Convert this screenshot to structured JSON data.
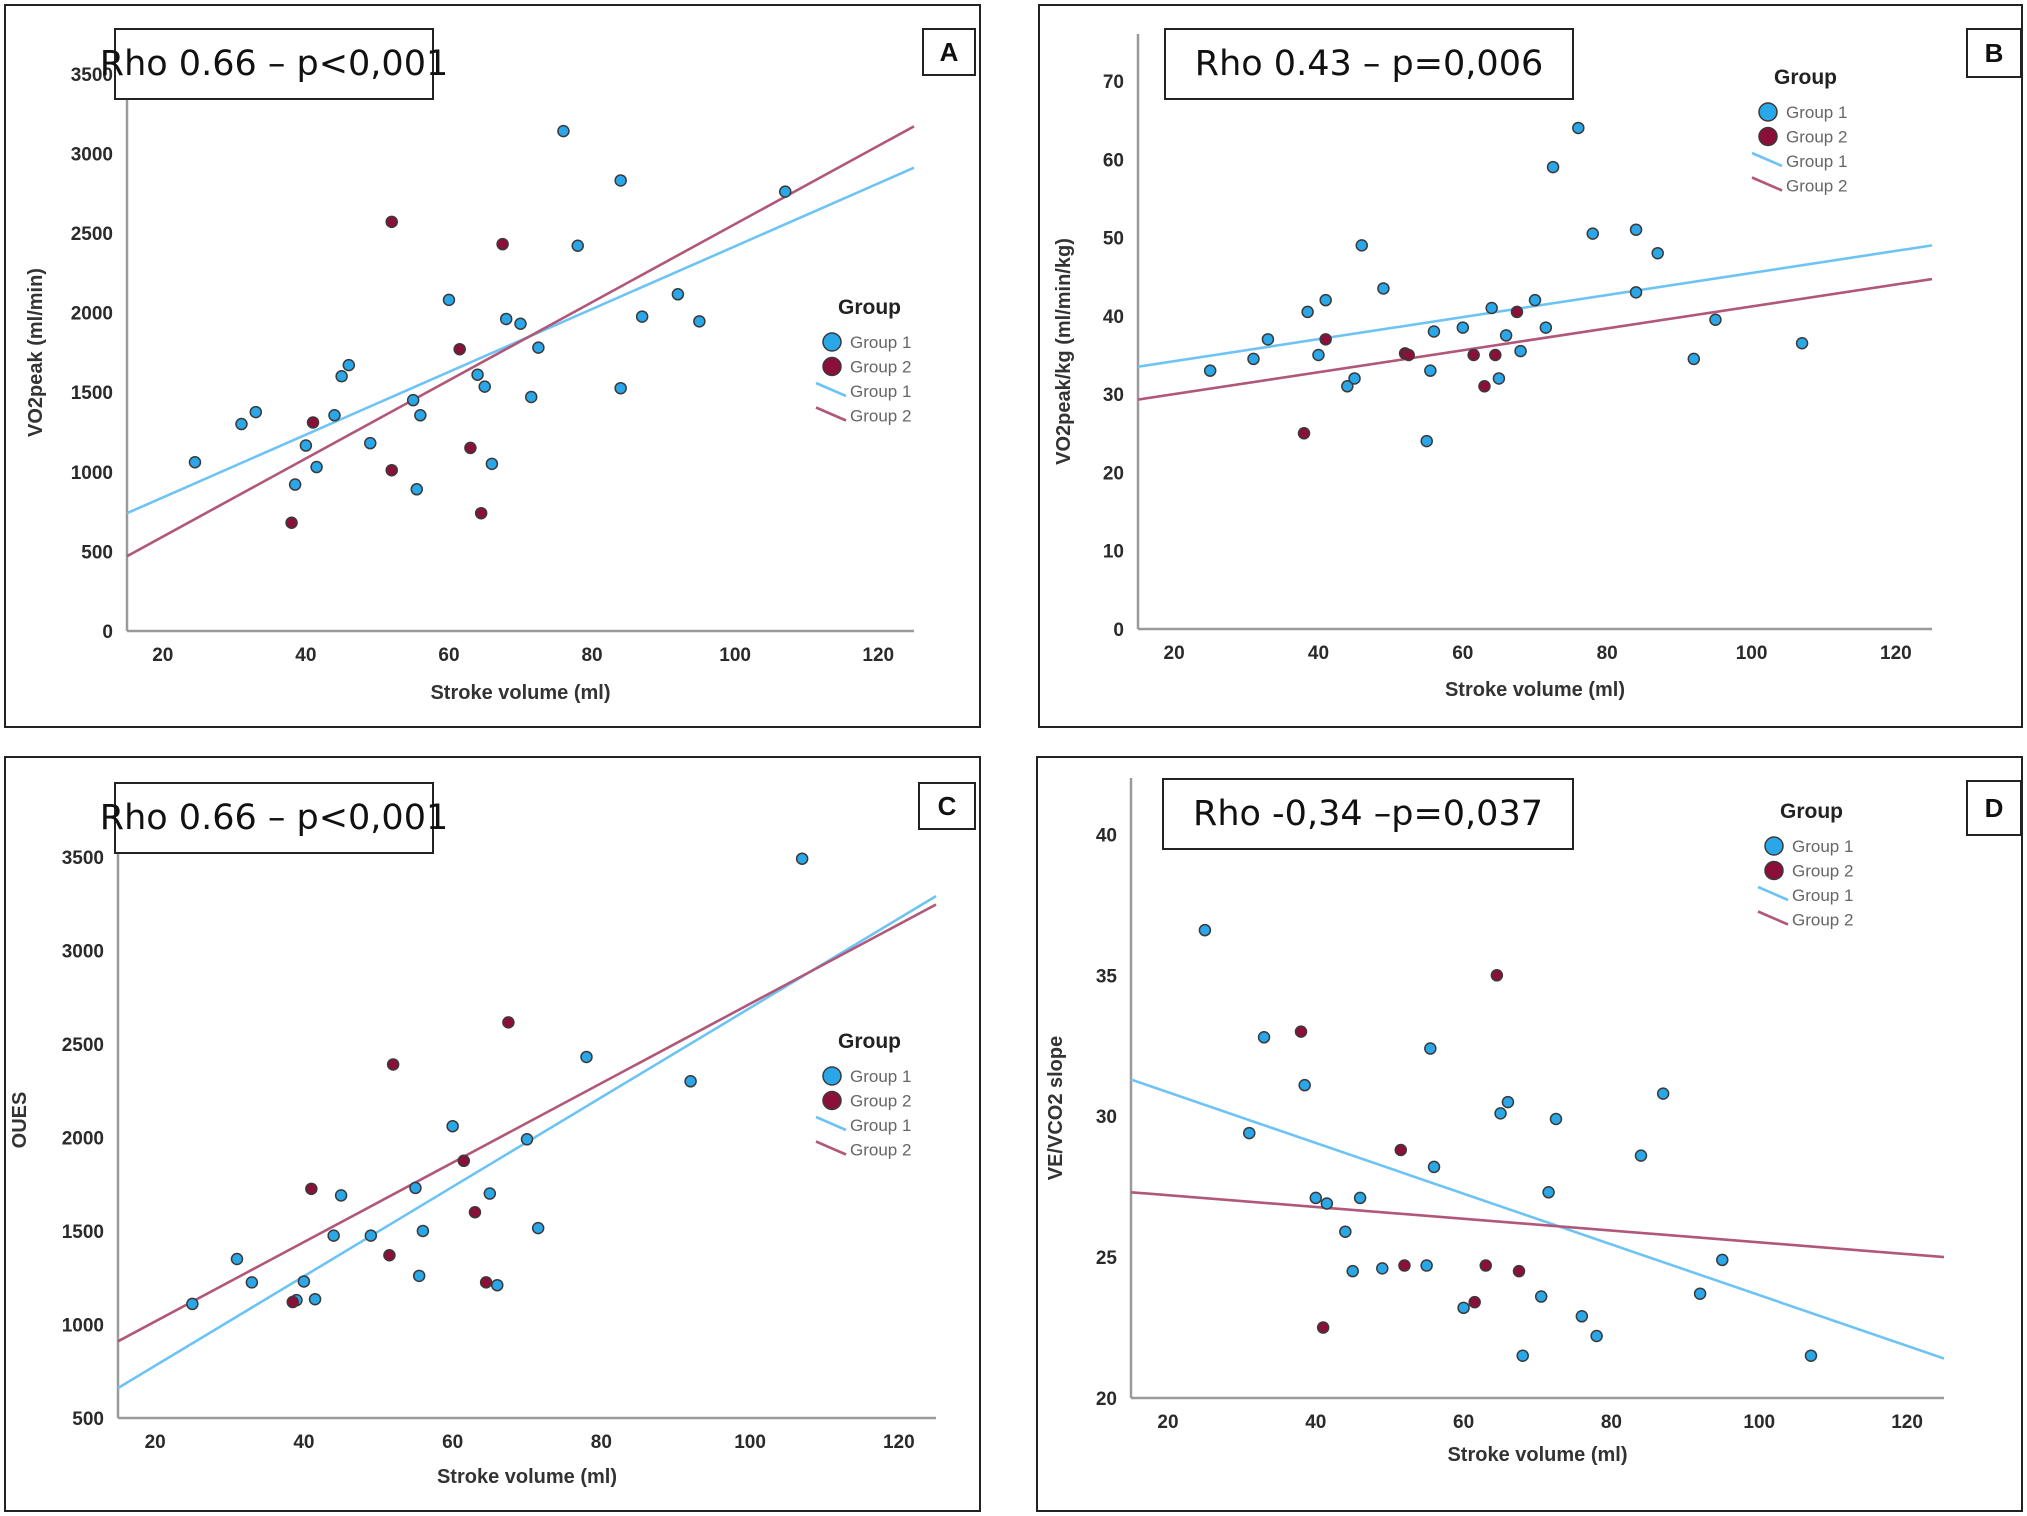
{
  "colors": {
    "group1_point": "#2aa7e8",
    "group2_point": "#8c0f3a",
    "group1_line": "#6ec3f5",
    "group2_line": "#b0577a",
    "axis": "#9a9a9a"
  },
  "chart_data": [
    {
      "id": "A",
      "type": "scatter",
      "panel_letter": "A",
      "annotation": "Rho 0.66 – p<0,001",
      "xlabel": "Stroke volume (ml)",
      "ylabel": "VO2peak (ml/min)",
      "xlim": [
        15,
        125
      ],
      "ylim": [
        0,
        3750
      ],
      "xticks": [
        20,
        40,
        60,
        80,
        100,
        120
      ],
      "yticks": [
        0,
        500,
        1000,
        1500,
        2000,
        2500,
        3000,
        3500
      ],
      "grid": false,
      "legend": {
        "title": "Group",
        "position": "right",
        "entries": [
          "Group 1",
          "Group 2",
          "Group 1",
          "Group 2"
        ]
      },
      "series": [
        {
          "name": "Group 1",
          "points": [
            [
              24.5,
              1060
            ],
            [
              31,
              1300
            ],
            [
              33,
              1375
            ],
            [
              38.5,
              920
            ],
            [
              40,
              1165
            ],
            [
              41.5,
              1030
            ],
            [
              44,
              1355
            ],
            [
              45,
              1600
            ],
            [
              46,
              1670
            ],
            [
              49,
              1180
            ],
            [
              55,
              1450
            ],
            [
              55.5,
              890
            ],
            [
              56,
              1355
            ],
            [
              60,
              2080
            ],
            [
              64,
              1610
            ],
            [
              65,
              1535
            ],
            [
              66,
              1050
            ],
            [
              68,
              1960
            ],
            [
              70,
              1930
            ],
            [
              71.5,
              1470
            ],
            [
              72.5,
              1780
            ],
            [
              76,
              3140
            ],
            [
              78,
              2420
            ],
            [
              84,
              2830
            ],
            [
              84,
              1525
            ],
            [
              87,
              1975
            ],
            [
              92,
              2115
            ],
            [
              95,
              1945
            ],
            [
              107,
              2760
            ]
          ]
        },
        {
          "name": "Group 2",
          "points": [
            [
              38,
              680
            ],
            [
              41,
              1310
            ],
            [
              52,
              2570
            ],
            [
              52,
              1010
            ],
            [
              61.5,
              1770
            ],
            [
              63,
              1150
            ],
            [
              64.5,
              740
            ],
            [
              67.5,
              2430
            ]
          ]
        }
      ],
      "fit_lines": [
        {
          "name": "Group 1",
          "from": [
            15,
            740
          ],
          "to": [
            125,
            2910
          ]
        },
        {
          "name": "Group 2",
          "from": [
            15,
            470
          ],
          "to": [
            125,
            3170
          ]
        }
      ]
    },
    {
      "id": "B",
      "type": "scatter",
      "panel_letter": "B",
      "annotation": "Rho 0.43 – p=0,006",
      "xlabel": "Stroke volume (ml)",
      "ylabel": "VO2peak/kg (ml/min/kg)",
      "xlim": [
        15,
        125
      ],
      "ylim": [
        0,
        76
      ],
      "xticks": [
        20,
        40,
        60,
        80,
        100,
        120
      ],
      "yticks": [
        0,
        10,
        20,
        30,
        40,
        50,
        60,
        70
      ],
      "grid": false,
      "legend": {
        "title": "Group",
        "position": "top-right",
        "entries": [
          "Group 1",
          "Group 2",
          "Group 1",
          "Group 2"
        ]
      },
      "series": [
        {
          "name": "Group 1",
          "points": [
            [
              25,
              33
            ],
            [
              31,
              34.5
            ],
            [
              33,
              37
            ],
            [
              38.5,
              40.5
            ],
            [
              40,
              35
            ],
            [
              41,
              42
            ],
            [
              44,
              31
            ],
            [
              45,
              32
            ],
            [
              46,
              49
            ],
            [
              49,
              43.5
            ],
            [
              55,
              24
            ],
            [
              55.5,
              33
            ],
            [
              56,
              38
            ],
            [
              60,
              38.5
            ],
            [
              64,
              41
            ],
            [
              65,
              32
            ],
            [
              66,
              37.5
            ],
            [
              68,
              35.5
            ],
            [
              70,
              42
            ],
            [
              71.5,
              38.5
            ],
            [
              72.5,
              59
            ],
            [
              76,
              64
            ],
            [
              78,
              50.5
            ],
            [
              84,
              51
            ],
            [
              84,
              43
            ],
            [
              87,
              48
            ],
            [
              92,
              34.5
            ],
            [
              95,
              39.5
            ],
            [
              107,
              36.5
            ]
          ]
        },
        {
          "name": "Group 2",
          "points": [
            [
              38,
              25
            ],
            [
              41,
              37
            ],
            [
              52,
              35.2
            ],
            [
              52.5,
              35
            ],
            [
              61.5,
              35
            ],
            [
              63,
              31
            ],
            [
              64.5,
              35
            ],
            [
              67.5,
              40.5
            ]
          ]
        }
      ],
      "fit_lines": [
        {
          "name": "Group 1",
          "from": [
            15,
            33.5
          ],
          "to": [
            125,
            49
          ]
        },
        {
          "name": "Group 2",
          "from": [
            15,
            29.3
          ],
          "to": [
            125,
            44.7
          ]
        }
      ]
    },
    {
      "id": "C",
      "type": "scatter",
      "panel_letter": "C",
      "annotation": "Rho 0.66 – p<0,001",
      "xlabel": "Stroke volume (ml)",
      "ylabel": "OUES",
      "xlim": [
        15,
        125
      ],
      "ylim": [
        500,
        3900
      ],
      "xticks": [
        20,
        40,
        60,
        80,
        100,
        120
      ],
      "yticks": [
        500,
        1000,
        1500,
        2000,
        2500,
        3000,
        3500
      ],
      "grid": false,
      "legend": {
        "title": "Group",
        "position": "right",
        "entries": [
          "Group 1",
          "Group 2",
          "Group 1",
          "Group 2"
        ]
      },
      "series": [
        {
          "name": "Group 1",
          "points": [
            [
              25,
              1110
            ],
            [
              31,
              1350
            ],
            [
              33,
              1225
            ],
            [
              39,
              1130
            ],
            [
              40,
              1230
            ],
            [
              41.5,
              1135
            ],
            [
              44,
              1475
            ],
            [
              45,
              1690
            ],
            [
              49,
              1475
            ],
            [
              55,
              1730
            ],
            [
              55.5,
              1260
            ],
            [
              56,
              1500
            ],
            [
              60,
              2060
            ],
            [
              65,
              1700
            ],
            [
              66,
              1210
            ],
            [
              70,
              1990
            ],
            [
              71.5,
              1515
            ],
            [
              78,
              2430
            ],
            [
              92,
              2300
            ],
            [
              107,
              3490
            ]
          ]
        },
        {
          "name": "Group 2",
          "points": [
            [
              38.5,
              1120
            ],
            [
              41,
              1725
            ],
            [
              52,
              2390
            ],
            [
              51.5,
              1370
            ],
            [
              61.5,
              1875
            ],
            [
              63,
              1600
            ],
            [
              64.5,
              1225
            ],
            [
              67.5,
              2615
            ]
          ]
        }
      ],
      "fit_lines": [
        {
          "name": "Group 1",
          "from": [
            15,
            660
          ],
          "to": [
            125,
            3290
          ]
        },
        {
          "name": "Group 2",
          "from": [
            15,
            910
          ],
          "to": [
            125,
            3245
          ]
        }
      ]
    },
    {
      "id": "D",
      "type": "scatter",
      "panel_letter": "D",
      "annotation": "Rho -0,34 –p=0,037",
      "xlabel": "Stroke volume (ml)",
      "ylabel": "VE/VCO2 slope",
      "xlim": [
        15,
        125
      ],
      "ylim": [
        20,
        42
      ],
      "xticks": [
        20,
        40,
        60,
        80,
        100,
        120
      ],
      "yticks": [
        20,
        25,
        30,
        35,
        40
      ],
      "grid": false,
      "legend": {
        "title": "Group",
        "position": "top-right",
        "entries": [
          "Group 1",
          "Group 2",
          "Group 1",
          "Group 2"
        ]
      },
      "series": [
        {
          "name": "Group 1",
          "points": [
            [
              25,
              36.6
            ],
            [
              31,
              29.4
            ],
            [
              33,
              32.8
            ],
            [
              38.5,
              31.1
            ],
            [
              40,
              27.1
            ],
            [
              41.5,
              26.9
            ],
            [
              44,
              25.9
            ],
            [
              45,
              24.5
            ],
            [
              46,
              27.1
            ],
            [
              49,
              24.6
            ],
            [
              55,
              24.7
            ],
            [
              55.5,
              32.4
            ],
            [
              56,
              28.2
            ],
            [
              60,
              23.2
            ],
            [
              65,
              30.1
            ],
            [
              66,
              30.5
            ],
            [
              68,
              21.5
            ],
            [
              70.5,
              23.6
            ],
            [
              71.5,
              27.3
            ],
            [
              72.5,
              29.9
            ],
            [
              76,
              22.9
            ],
            [
              78,
              22.2
            ],
            [
              84,
              28.6
            ],
            [
              87,
              30.8
            ],
            [
              92,
              23.7
            ],
            [
              95,
              24.9
            ],
            [
              107,
              21.5
            ]
          ]
        },
        {
          "name": "Group 2",
          "points": [
            [
              38,
              33
            ],
            [
              41,
              22.5
            ],
            [
              51.5,
              28.8
            ],
            [
              52,
              24.7
            ],
            [
              61.5,
              23.4
            ],
            [
              63,
              24.7
            ],
            [
              64.5,
              35
            ],
            [
              67.5,
              24.5
            ]
          ]
        }
      ],
      "fit_lines": [
        {
          "name": "Group 1",
          "from": [
            15,
            31.3
          ],
          "to": [
            125,
            21.4
          ]
        },
        {
          "name": "Group 2",
          "from": [
            15,
            27.3
          ],
          "to": [
            125,
            25.0
          ]
        }
      ]
    }
  ]
}
